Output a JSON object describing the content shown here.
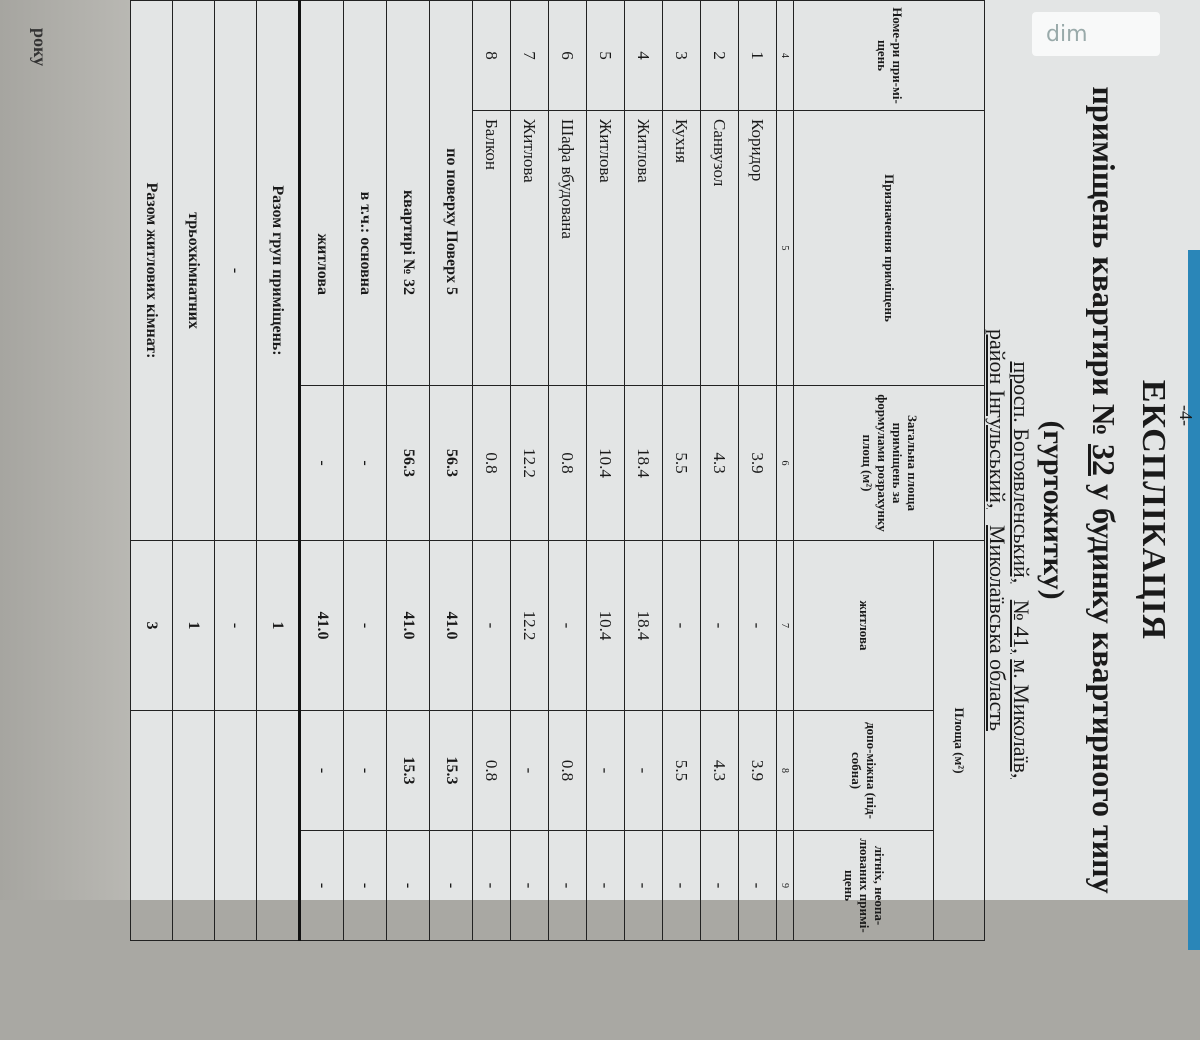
{
  "page_number": "-4-",
  "title": "ЕКСПЛІКАЦІЯ",
  "subtitle_prefix": "приміщень квартири №",
  "apartment_no": "32",
  "subtitle_suffix": "у будинку квартирного типу",
  "subtitle2": "(гуртожитку)",
  "address": {
    "street": "просп. Богоявленський,",
    "house": "№ 41,",
    "city": "м. Миколаїв,"
  },
  "district": {
    "district": "район Інгульський,",
    "region": "Миколаївська область"
  },
  "headers": {
    "number": "Номе-ри при-мі-щень",
    "purpose": "Призначення приміщень",
    "total": "Загальна площа приміщень за формулами розрахунку площ (м²)",
    "area": "Площа (м²)",
    "living": "житлова",
    "auxiliary": "допо-міжна (під-собна)",
    "summer": "літніх, неопа-люваних примі-щень"
  },
  "column_numbers": [
    "4",
    "5",
    "6",
    "7",
    "8",
    "9"
  ],
  "rows": [
    {
      "no": "1",
      "name": "Коридор",
      "total": "3.9",
      "living": "-",
      "aux": "3.9",
      "summer": "-"
    },
    {
      "no": "2",
      "name": "Санвузол",
      "total": "4.3",
      "living": "-",
      "aux": "4.3",
      "summer": "-"
    },
    {
      "no": "3",
      "name": "Кухня",
      "total": "5.5",
      "living": "-",
      "aux": "5.5",
      "summer": "-"
    },
    {
      "no": "4",
      "name": "Житлова",
      "total": "18.4",
      "living": "18.4",
      "aux": "-",
      "summer": "-"
    },
    {
      "no": "5",
      "name": "Житлова",
      "total": "10.4",
      "living": "10.4",
      "aux": "-",
      "summer": "-"
    },
    {
      "no": "6",
      "name": "Шафа вбудована",
      "total": "0.8",
      "living": "-",
      "aux": "0.8",
      "summer": "-"
    },
    {
      "no": "7",
      "name": "Житлова",
      "total": "12.2",
      "living": "12.2",
      "aux": "-",
      "summer": "-"
    },
    {
      "no": "8",
      "name": "Балкон",
      "total": "0.8",
      "living": "-",
      "aux": "0.8",
      "summer": "-"
    }
  ],
  "summary": [
    {
      "label": "по поверху Поверх 5",
      "total": "56.3",
      "living": "41.0",
      "aux": "15.3",
      "summer": "-"
    },
    {
      "label": "квартирі № 32",
      "total": "56.3",
      "living": "41.0",
      "aux": "15.3",
      "summer": "-"
    },
    {
      "label": "в т.ч.: основна",
      "total": "-",
      "living": "-",
      "aux": "-",
      "summer": "-"
    },
    {
      "label": "житлова",
      "total": "-",
      "living": "41.0",
      "aux": "-",
      "summer": "-"
    }
  ],
  "counts": [
    {
      "label": "Разом груп приміщень:",
      "value": "1"
    },
    {
      "label": "-",
      "value": "-"
    },
    {
      "label": "трьохкімнатних",
      "value": "1"
    },
    {
      "label": "Разом житлових кімнат:",
      "value": "3"
    }
  ],
  "footer_fragment": "року",
  "watermark": "dim"
}
